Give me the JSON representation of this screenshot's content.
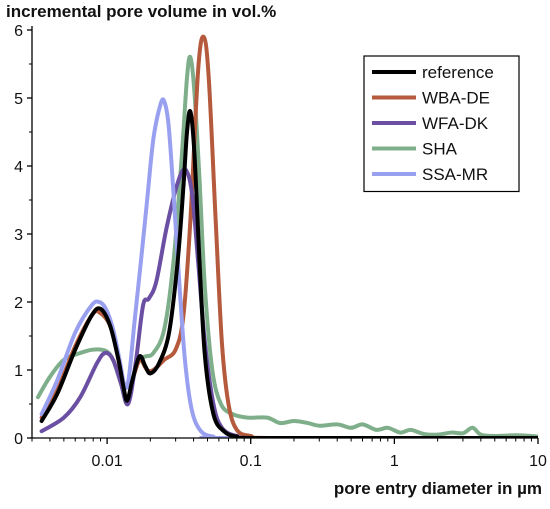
{
  "chart_data": {
    "type": "line",
    "title": "",
    "ylabel": "incremental pore volume in vol.%",
    "xlabel": "pore entry diameter in µm",
    "x_scale": "log",
    "xlim": [
      0.003,
      10
    ],
    "ylim": [
      0,
      6
    ],
    "x_ticks": [
      0.01,
      0.1,
      1,
      10
    ],
    "x_tick_labels": [
      "0.01",
      "0.1",
      "1",
      "10"
    ],
    "y_ticks": [
      0,
      1,
      2,
      3,
      4,
      5,
      6
    ],
    "y_tick_labels": [
      "0",
      "1",
      "2",
      "3",
      "4",
      "5",
      "6"
    ],
    "grid": false,
    "legend_position": "top-right",
    "series": [
      {
        "name": "reference",
        "color": "#000000",
        "points": [
          [
            0.0035,
            0.25
          ],
          [
            0.0045,
            0.65
          ],
          [
            0.006,
            1.3
          ],
          [
            0.0078,
            1.8
          ],
          [
            0.009,
            1.9
          ],
          [
            0.0105,
            1.65
          ],
          [
            0.012,
            1.15
          ],
          [
            0.013,
            0.75
          ],
          [
            0.0138,
            0.55
          ],
          [
            0.015,
            0.85
          ],
          [
            0.0168,
            1.2
          ],
          [
            0.0185,
            1.05
          ],
          [
            0.02,
            0.95
          ],
          [
            0.023,
            1.1
          ],
          [
            0.027,
            1.55
          ],
          [
            0.031,
            2.6
          ],
          [
            0.034,
            3.7
          ],
          [
            0.036,
            4.5
          ],
          [
            0.038,
            4.8
          ],
          [
            0.0405,
            4.2
          ],
          [
            0.044,
            2.6
          ],
          [
            0.048,
            1.2
          ],
          [
            0.055,
            0.35
          ],
          [
            0.065,
            0.1
          ],
          [
            0.08,
            0.02
          ],
          [
            0.12,
            0
          ],
          [
            10,
            0
          ]
        ]
      },
      {
        "name": "WBA-DE",
        "color": "#b55a3c",
        "points": [
          [
            0.0035,
            0.3
          ],
          [
            0.0045,
            0.7
          ],
          [
            0.006,
            1.35
          ],
          [
            0.0078,
            1.8
          ],
          [
            0.0088,
            1.85
          ],
          [
            0.0105,
            1.65
          ],
          [
            0.012,
            1.15
          ],
          [
            0.013,
            0.7
          ],
          [
            0.014,
            0.6
          ],
          [
            0.0155,
            0.95
          ],
          [
            0.017,
            1.15
          ],
          [
            0.019,
            1.0
          ],
          [
            0.021,
            1.0
          ],
          [
            0.025,
            1.15
          ],
          [
            0.03,
            1.3
          ],
          [
            0.034,
            1.8
          ],
          [
            0.038,
            3.2
          ],
          [
            0.043,
            5.4
          ],
          [
            0.047,
            5.9
          ],
          [
            0.051,
            5.3
          ],
          [
            0.057,
            3.2
          ],
          [
            0.063,
            1.4
          ],
          [
            0.07,
            0.5
          ],
          [
            0.08,
            0.12
          ],
          [
            0.1,
            0.03
          ],
          [
            0.15,
            0
          ],
          [
            10,
            0
          ]
        ]
      },
      {
        "name": "WFA-DK",
        "color": "#6a4fa3",
        "points": [
          [
            0.0035,
            0.1
          ],
          [
            0.005,
            0.3
          ],
          [
            0.0065,
            0.6
          ],
          [
            0.0085,
            1.1
          ],
          [
            0.0097,
            1.25
          ],
          [
            0.011,
            1.15
          ],
          [
            0.0125,
            0.8
          ],
          [
            0.014,
            0.5
          ],
          [
            0.0158,
            1.1
          ],
          [
            0.0178,
            1.95
          ],
          [
            0.0195,
            2.05
          ],
          [
            0.022,
            2.3
          ],
          [
            0.026,
            3.1
          ],
          [
            0.031,
            3.75
          ],
          [
            0.035,
            3.95
          ],
          [
            0.039,
            3.6
          ],
          [
            0.043,
            2.6
          ],
          [
            0.048,
            1.4
          ],
          [
            0.055,
            0.5
          ],
          [
            0.063,
            0.15
          ],
          [
            0.08,
            0.03
          ],
          [
            0.12,
            0
          ],
          [
            10,
            0
          ]
        ]
      },
      {
        "name": "SHA",
        "color": "#7faf8a",
        "points": [
          [
            0.0033,
            0.6
          ],
          [
            0.004,
            0.9
          ],
          [
            0.005,
            1.15
          ],
          [
            0.0065,
            1.25
          ],
          [
            0.008,
            1.3
          ],
          [
            0.0098,
            1.28
          ],
          [
            0.011,
            1.15
          ],
          [
            0.0125,
            0.8
          ],
          [
            0.0138,
            0.5
          ],
          [
            0.0152,
            0.9
          ],
          [
            0.0168,
            1.15
          ],
          [
            0.0185,
            1.2
          ],
          [
            0.021,
            1.25
          ],
          [
            0.025,
            1.6
          ],
          [
            0.029,
            2.6
          ],
          [
            0.033,
            4.1
          ],
          [
            0.036,
            5.3
          ],
          [
            0.038,
            5.6
          ],
          [
            0.0405,
            5.1
          ],
          [
            0.044,
            3.8
          ],
          [
            0.048,
            2.2
          ],
          [
            0.054,
            1.0
          ],
          [
            0.062,
            0.5
          ],
          [
            0.075,
            0.35
          ],
          [
            0.095,
            0.3
          ],
          [
            0.13,
            0.3
          ],
          [
            0.16,
            0.22
          ],
          [
            0.2,
            0.25
          ],
          [
            0.25,
            0.22
          ],
          [
            0.3,
            0.18
          ],
          [
            0.4,
            0.2
          ],
          [
            0.5,
            0.15
          ],
          [
            0.6,
            0.2
          ],
          [
            0.75,
            0.12
          ],
          [
            0.9,
            0.15
          ],
          [
            1.1,
            0.08
          ],
          [
            1.3,
            0.12
          ],
          [
            1.6,
            0.06
          ],
          [
            2.0,
            0.05
          ],
          [
            2.5,
            0.08
          ],
          [
            3.0,
            0.07
          ],
          [
            3.5,
            0.15
          ],
          [
            4.0,
            0.05
          ],
          [
            5.0,
            0.03
          ],
          [
            7.0,
            0.04
          ],
          [
            9.0,
            0.03
          ],
          [
            10,
            0.02
          ]
        ]
      },
      {
        "name": "SSA-MR",
        "color": "#9aa0f0",
        "points": [
          [
            0.0035,
            0.35
          ],
          [
            0.0045,
            0.85
          ],
          [
            0.006,
            1.55
          ],
          [
            0.0078,
            1.95
          ],
          [
            0.0088,
            2.0
          ],
          [
            0.0098,
            1.9
          ],
          [
            0.011,
            1.6
          ],
          [
            0.0122,
            1.15
          ],
          [
            0.0133,
            0.75
          ],
          [
            0.0142,
            0.9
          ],
          [
            0.0155,
            1.7
          ],
          [
            0.0172,
            2.6
          ],
          [
            0.019,
            3.5
          ],
          [
            0.021,
            4.4
          ],
          [
            0.0235,
            4.9
          ],
          [
            0.025,
            4.95
          ],
          [
            0.0268,
            4.6
          ],
          [
            0.029,
            3.6
          ],
          [
            0.032,
            2.2
          ],
          [
            0.035,
            1.1
          ],
          [
            0.039,
            0.4
          ],
          [
            0.045,
            0.1
          ],
          [
            0.055,
            0.02
          ],
          [
            0.07,
            0
          ],
          [
            10,
            0
          ]
        ]
      }
    ]
  }
}
